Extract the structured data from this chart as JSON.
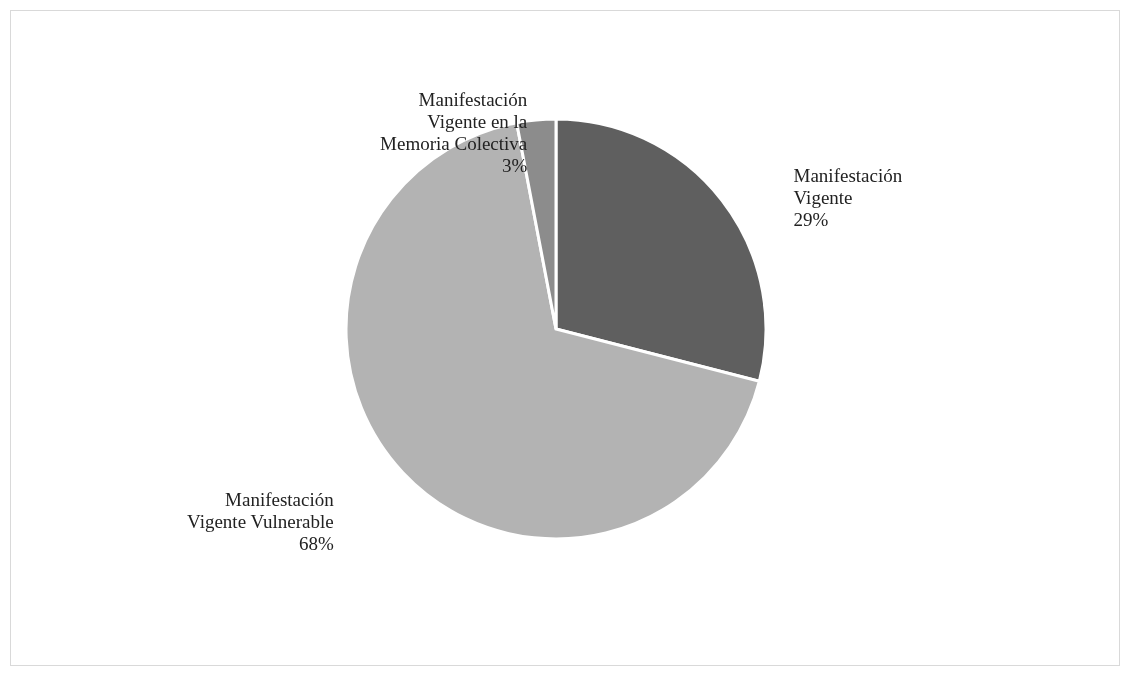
{
  "chart_data": {
    "type": "pie",
    "categories": [
      "Manifestación Vigente",
      "Manifestación Vigente Vulnerable",
      "Manifestación Vigente en la Memoria Colectiva"
    ],
    "values": [
      29,
      68,
      3
    ],
    "colors": [
      "#5f5f5f",
      "#b3b3b3",
      "#8c8c8c"
    ],
    "value_labels": [
      "29%",
      "68%",
      "3%"
    ],
    "legend": false
  }
}
